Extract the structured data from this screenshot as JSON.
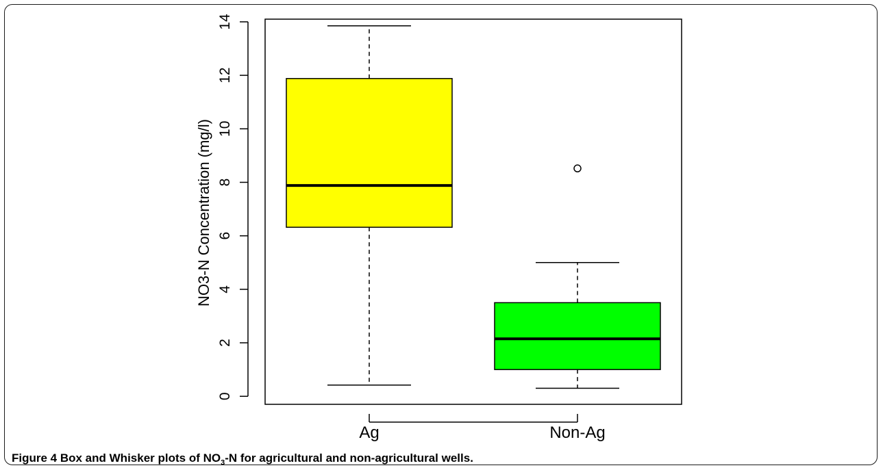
{
  "chart_data": {
    "type": "boxplot",
    "title": "",
    "xlabel": "",
    "ylabel": "NO3-N Concentration (mg/l)",
    "ylim": [
      -0.3,
      14.1
    ],
    "yticks": [
      0,
      2,
      4,
      6,
      8,
      10,
      12,
      14
    ],
    "categories": [
      "Ag",
      "Non-Ag"
    ],
    "boxes": [
      {
        "label": "Ag",
        "min": 0.42,
        "q1": 6.32,
        "median": 7.88,
        "q3": 11.88,
        "max": 13.85,
        "outliers": [],
        "color": "#ffff00"
      },
      {
        "label": "Non-Ag",
        "min": 0.3,
        "q1": 1.0,
        "median": 2.15,
        "q3": 3.5,
        "max": 5.0,
        "outliers": [
          8.52
        ],
        "color": "#00ff00"
      }
    ],
    "grid": false
  },
  "caption": {
    "figure_label": "Figure 4",
    "text_before_sub": " Box and Whisker plots of NO",
    "subscript": "3",
    "text_after_sub": "-N for agricultural and non-agricultural wells."
  }
}
